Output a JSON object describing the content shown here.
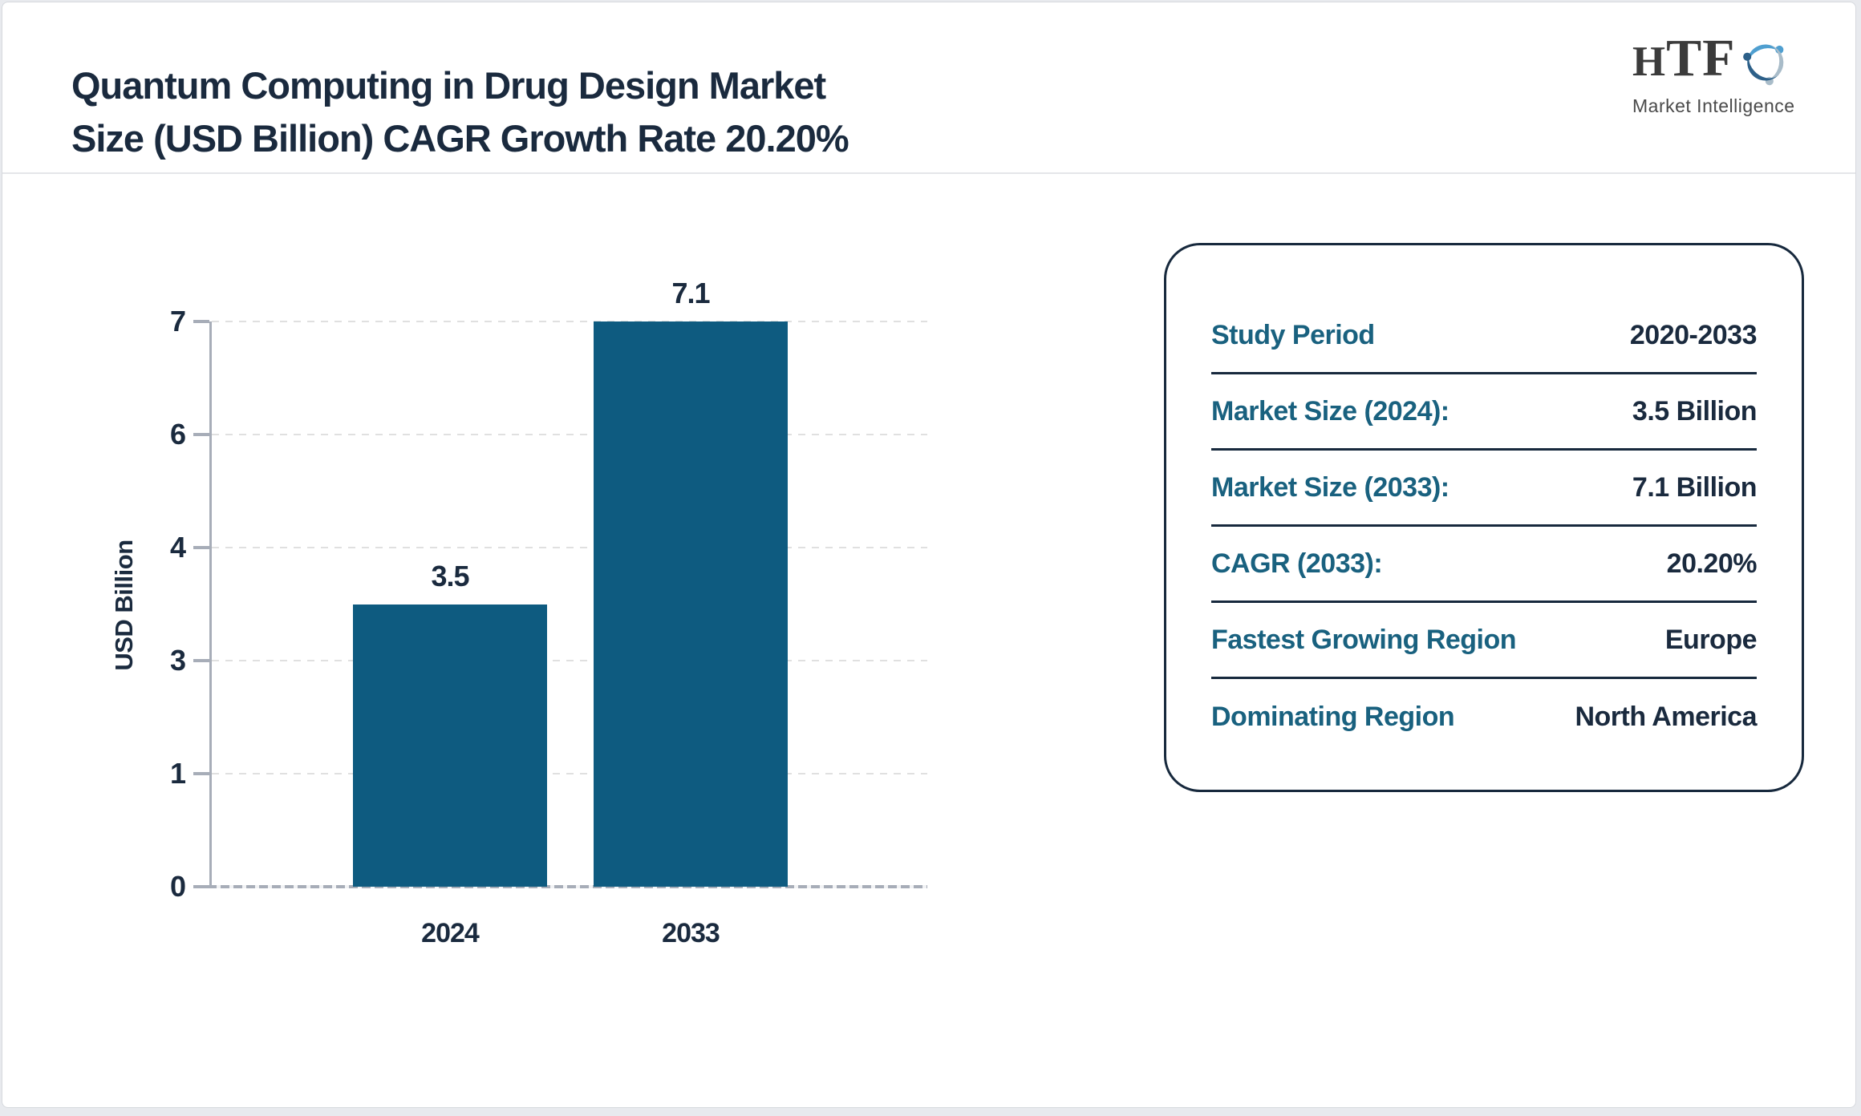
{
  "header": {
    "title_lines": [
      "Quantum Computing in Drug Design Market",
      "Size (USD Billion) CAGR Growth Rate 20.20%"
    ],
    "logo_text": "HTF",
    "logo_subtext": "Market Intelligence"
  },
  "chart_data": {
    "type": "bar",
    "title": "Quantum Computing in Drug Design Market Size (USD Billion) CAGR Growth Rate 20.20%",
    "categories": [
      "2024",
      "2033"
    ],
    "values": [
      3.5,
      7.1
    ],
    "value_labels": [
      "3.5",
      "7.1"
    ],
    "xlabel": "",
    "ylabel": "USD Billion",
    "yticks": [
      0,
      1,
      3,
      4,
      6,
      7
    ],
    "ylim": [
      0,
      7
    ],
    "grid": "horizontal-dashed",
    "legend": false,
    "bar_color": "#0e5b80"
  },
  "info_panel": {
    "rows": [
      {
        "label": "Study Period",
        "value": "2020-2033"
      },
      {
        "label": "Market Size (2024):",
        "value": "3.5 Billion"
      },
      {
        "label": "Market Size (2033):",
        "value": "7.1 Billion"
      },
      {
        "label": "CAGR (2033):",
        "value": "20.20%"
      },
      {
        "label": "Fastest Growing Region",
        "value": "Europe"
      },
      {
        "label": "Dominating Region",
        "value": "North America"
      }
    ]
  },
  "colors": {
    "page_background": "#e8eaee",
    "card_background": "#ffffff",
    "title_text": "#1a2a3e",
    "label_teal": "#19617f",
    "bar_fill": "#0e5b80",
    "axis_gray": "#a7adb8",
    "gridline_gray": "#e0e0e0",
    "panel_border": "#17293d",
    "logo_blue_light": "#4f9fd0",
    "logo_blue_dark": "#2d6089",
    "logo_gray_blue": "#a9bcc9"
  }
}
